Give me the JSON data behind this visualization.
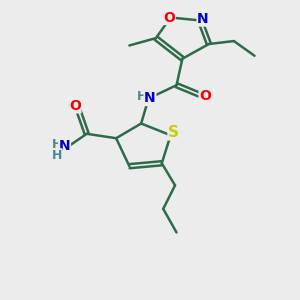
{
  "bg_color": "#ececec",
  "bond_color": "#2d6b4a",
  "bond_width": 1.8,
  "atom_colors": {
    "O": "#ff0000",
    "N": "#0000cc",
    "S": "#cccc00",
    "C": "#2d6b4a",
    "H": "#4a8a8a",
    "NH2_N": "#0000cc",
    "NH2_H": "#4a8a8a"
  },
  "font_size": 10,
  "font_size_sub": 8
}
